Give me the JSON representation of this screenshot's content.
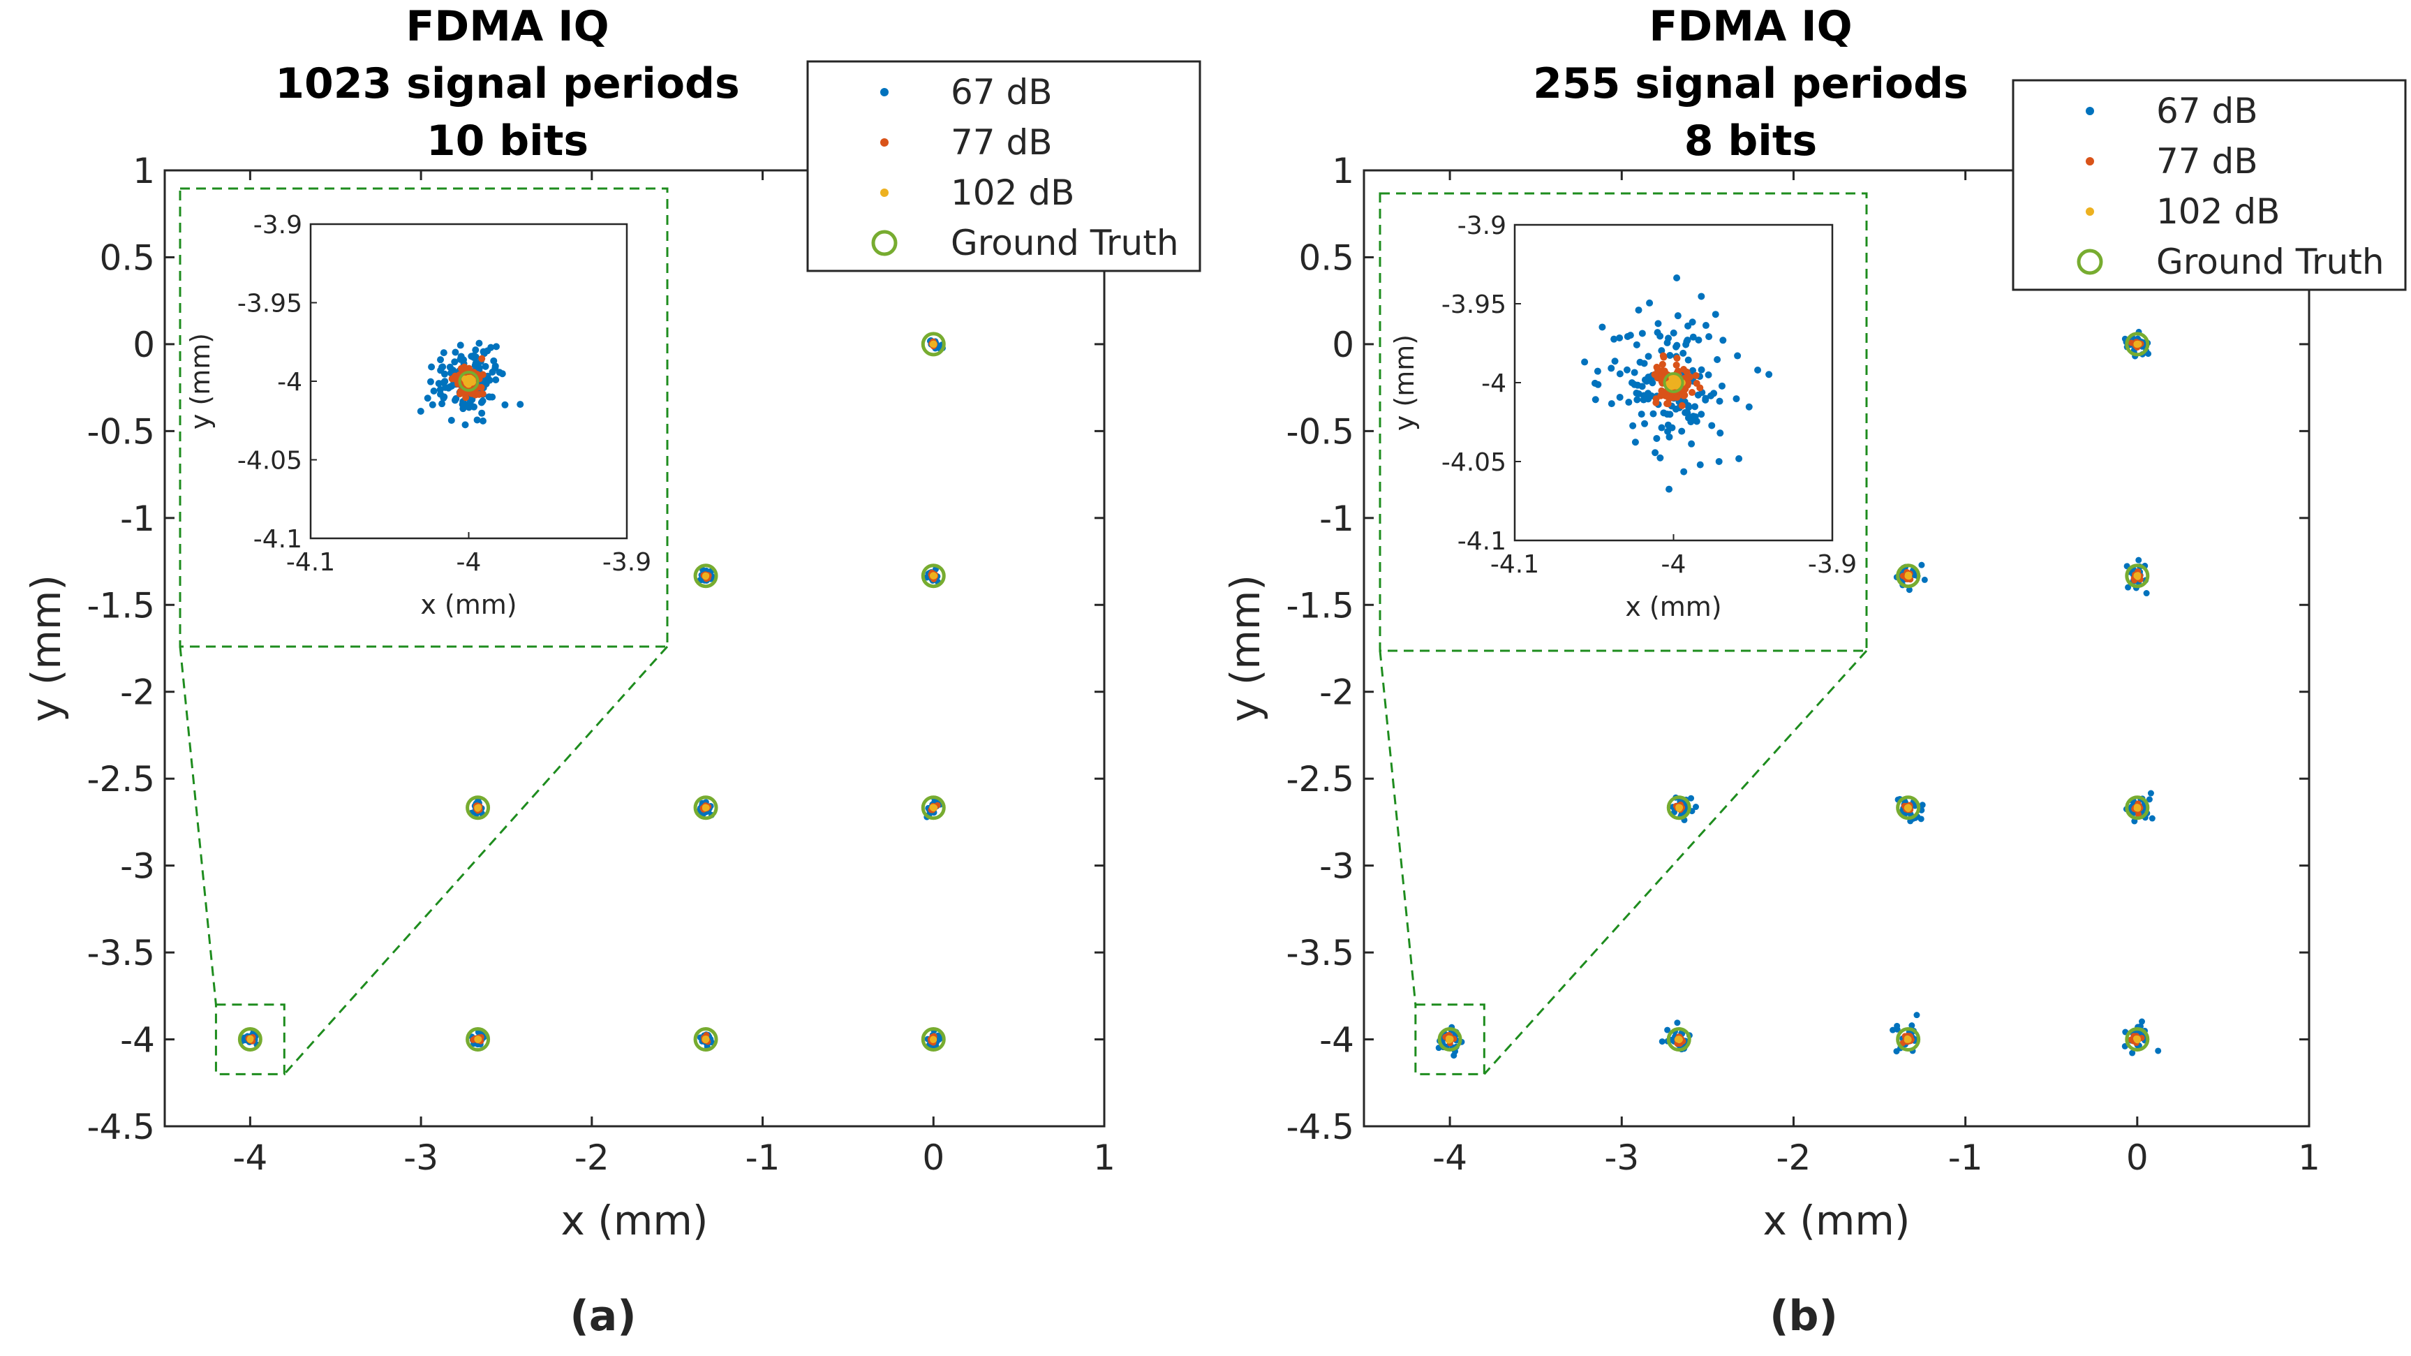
{
  "colors": {
    "s67": "#0072BD",
    "s77": "#D95319",
    "s102": "#EDB120",
    "ground_truth": "#77AC30",
    "zoom_box": "#1E8C1E",
    "axis": "#262626"
  },
  "chart_data": [
    {
      "type": "scatter",
      "panel": "a",
      "caption": "(a)",
      "title": [
        "FDMA IQ",
        "1023 signal periods",
        "10 bits"
      ],
      "xlabel": "x (mm)",
      "ylabel": "y (mm)",
      "xlim": [
        -4.5,
        1
      ],
      "ylim": [
        -4.5,
        1
      ],
      "xticks": [
        "-4",
        "-3",
        "-2",
        "-1",
        "0",
        "1"
      ],
      "yticks": [
        "1",
        "0.5",
        "0",
        "-0.5",
        "-1",
        "-1.5",
        "-2",
        "-2.5",
        "-3",
        "-3.5",
        "-4",
        "-4.5"
      ],
      "legend": [
        "67 dB",
        "77 dB",
        "102 dB",
        "Ground Truth"
      ],
      "legend_location": "top-right",
      "ground_truth": [
        [
          -4,
          -4
        ],
        [
          -2.667,
          -4
        ],
        [
          -1.333,
          -4
        ],
        [
          0,
          -4
        ],
        [
          -2.667,
          -2.667
        ],
        [
          -1.333,
          -2.667
        ],
        [
          0,
          -2.667
        ],
        [
          -1.333,
          -1.333
        ],
        [
          0,
          -1.333
        ],
        [
          0,
          0
        ]
      ],
      "spread": {
        "67 dB": 0.02,
        "77 dB": 0.008,
        "102 dB": 0.002
      },
      "zoom_box": {
        "x": [
          -4.2,
          -3.8
        ],
        "y": [
          -4.2,
          -3.8
        ]
      },
      "inset": {
        "xlabel": "x (mm)",
        "ylabel": "y (mm)",
        "xlim": [
          -4.1,
          -3.9
        ],
        "ylim": [
          -4.1,
          -3.9
        ],
        "xticks": [
          "-4.1",
          "-4",
          "-3.9"
        ],
        "yticks": [
          "-3.9",
          "-3.95",
          "-4",
          "-4.05",
          "-4.1"
        ],
        "center": [
          -4,
          -4
        ]
      }
    },
    {
      "type": "scatter",
      "panel": "b",
      "caption": "(b)",
      "title": [
        "FDMA IQ",
        "255 signal periods",
        "8 bits"
      ],
      "xlabel": "x (mm)",
      "ylabel": "y (mm)",
      "xlim": [
        -4.5,
        1
      ],
      "ylim": [
        -4.5,
        1
      ],
      "xticks": [
        "-4",
        "-3",
        "-2",
        "-1",
        "0",
        "1"
      ],
      "yticks": [
        "1",
        "0.5",
        "0",
        "-0.5",
        "-1",
        "-1.5",
        "-2",
        "-2.5",
        "-3",
        "-3.5",
        "-4",
        "-4.5"
      ],
      "legend": [
        "67 dB",
        "77 dB",
        "102 dB",
        "Ground Truth"
      ],
      "legend_location": "top-right",
      "ground_truth": [
        [
          -4,
          -4
        ],
        [
          -2.667,
          -4
        ],
        [
          -1.333,
          -4
        ],
        [
          0,
          -4
        ],
        [
          -2.667,
          -2.667
        ],
        [
          -1.333,
          -2.667
        ],
        [
          0,
          -2.667
        ],
        [
          -1.333,
          -1.333
        ],
        [
          0,
          -1.333
        ],
        [
          0,
          0
        ]
      ],
      "spread": {
        "67 dB": 0.04,
        "77 dB": 0.012,
        "102 dB": 0.003
      },
      "zoom_box": {
        "x": [
          -4.2,
          -3.8
        ],
        "y": [
          -4.2,
          -3.8
        ]
      },
      "inset": {
        "xlabel": "x (mm)",
        "ylabel": "y (mm)",
        "xlim": [
          -4.1,
          -3.9
        ],
        "ylim": [
          -4.1,
          -3.9
        ],
        "xticks": [
          "-4.1",
          "-4",
          "-3.9"
        ],
        "yticks": [
          "-3.9",
          "-3.95",
          "-4",
          "-4.05",
          "-4.1"
        ],
        "center": [
          -4,
          -4
        ]
      }
    }
  ]
}
